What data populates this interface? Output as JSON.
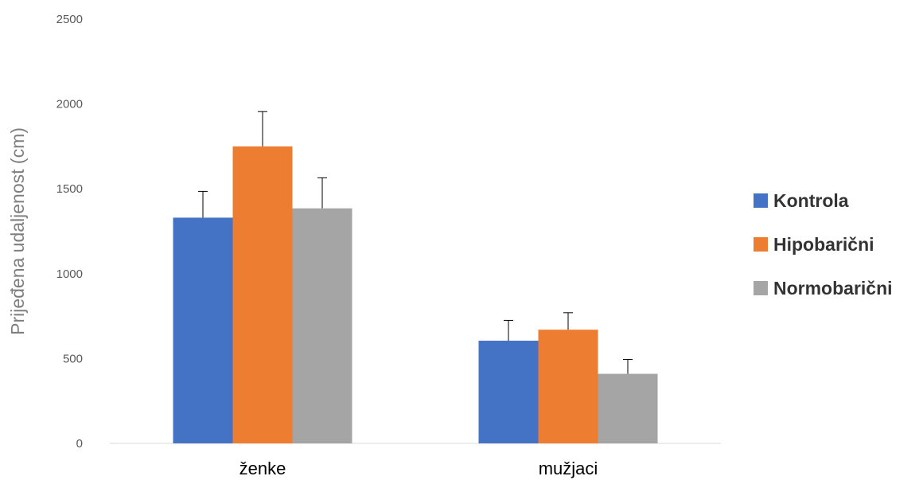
{
  "chart_data": {
    "type": "bar",
    "ylabel": "Prijeđena udaljenost (cm)",
    "xlabel": "",
    "ylim": [
      0,
      2500
    ],
    "yticks": [
      0,
      500,
      1000,
      1500,
      2000,
      2500
    ],
    "categories": [
      "ženke",
      "mužjaci"
    ],
    "series": [
      {
        "name": "Kontrola",
        "color": "#4472c4",
        "values": [
          1330,
          605
        ],
        "errors": [
          155,
          120
        ]
      },
      {
        "name": "Hipobarični",
        "color": "#ed7d31",
        "values": [
          1750,
          670
        ],
        "errors": [
          205,
          100
        ]
      },
      {
        "name": "Normobarični",
        "color": "#a5a5a5",
        "values": [
          1385,
          410
        ],
        "errors": [
          180,
          85
        ]
      }
    ],
    "grid": false,
    "legend_position": "right"
  }
}
